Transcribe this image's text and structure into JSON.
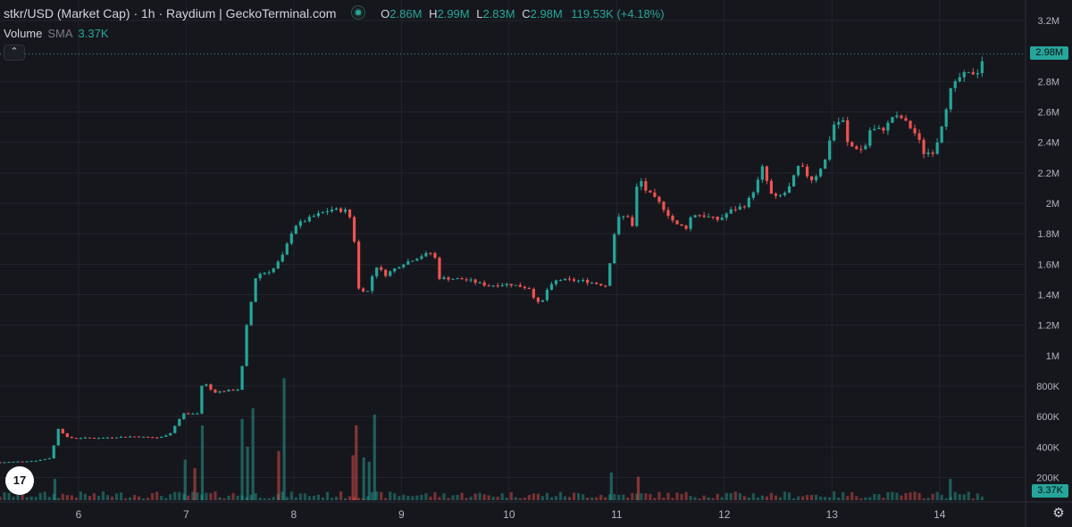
{
  "header": {
    "title": "stkr/USD (Market Cap) · 1h · Raydium | GeckoTerminal.com",
    "ohlc": [
      {
        "key": "O",
        "value": "2.86M"
      },
      {
        "key": "H",
        "value": "2.99M"
      },
      {
        "key": "L",
        "value": "2.83M"
      },
      {
        "key": "C",
        "value": "2.98M"
      }
    ],
    "change": "119.53K (+4.18%)"
  },
  "volume_legend": {
    "label": "Volume",
    "indicator": "SMA",
    "value": "3.37K"
  },
  "collapse_icon": "chevron-up-icon",
  "price_tag": "2.98M",
  "volume_tag": "3.37K",
  "logo_text": "17",
  "colors": {
    "up": "#26a69a",
    "down": "#ef5350",
    "background": "#16171d",
    "grid": "#22242e",
    "text": "#d1d4dc"
  },
  "chart_data": {
    "type": "candlestick",
    "ylim": [
      0,
      3200000
    ],
    "y_ticks": [
      {
        "value": 200000,
        "label": "200K"
      },
      {
        "value": 400000,
        "label": "400K"
      },
      {
        "value": 600000,
        "label": "600K"
      },
      {
        "value": 800000,
        "label": "800K"
      },
      {
        "value": 1000000,
        "label": "1M"
      },
      {
        "value": 1200000,
        "label": "1.2M"
      },
      {
        "value": 1400000,
        "label": "1.4M"
      },
      {
        "value": 1600000,
        "label": "1.6M"
      },
      {
        "value": 1800000,
        "label": "1.8M"
      },
      {
        "value": 2000000,
        "label": "2M"
      },
      {
        "value": 2200000,
        "label": "2.2M"
      },
      {
        "value": 2400000,
        "label": "2.4M"
      },
      {
        "value": 2600000,
        "label": "2.6M"
      },
      {
        "value": 2800000,
        "label": "2.8M"
      },
      {
        "value": 3200000,
        "label": "3.2M"
      }
    ],
    "x_ticks": [
      {
        "day": 6,
        "label": "6"
      },
      {
        "day": 7,
        "label": "7"
      },
      {
        "day": 8,
        "label": "8"
      },
      {
        "day": 9,
        "label": "9"
      },
      {
        "day": 10,
        "label": "10"
      },
      {
        "day": 11,
        "label": "11"
      },
      {
        "day": 12,
        "label": "12"
      },
      {
        "day": 13,
        "label": "13"
      },
      {
        "day": 14,
        "label": "14"
      }
    ],
    "xlim": [
      5.27,
      14.5
    ],
    "last_price": 2980000,
    "close_path": [
      [
        5.3,
        300000
      ],
      [
        5.6,
        310000
      ],
      [
        5.75,
        330000
      ],
      [
        5.8,
        530000
      ],
      [
        5.9,
        460000
      ],
      [
        6.2,
        460000
      ],
      [
        6.5,
        470000
      ],
      [
        6.75,
        460000
      ],
      [
        6.85,
        490000
      ],
      [
        6.97,
        620000
      ],
      [
        7.12,
        620000
      ],
      [
        7.15,
        840000
      ],
      [
        7.25,
        760000
      ],
      [
        7.5,
        780000
      ],
      [
        7.55,
        1150000
      ],
      [
        7.65,
        1530000
      ],
      [
        7.8,
        1560000
      ],
      [
        7.9,
        1660000
      ],
      [
        8.0,
        1850000
      ],
      [
        8.2,
        1920000
      ],
      [
        8.35,
        1960000
      ],
      [
        8.5,
        1950000
      ],
      [
        8.55,
        1850000
      ],
      [
        8.6,
        1440000
      ],
      [
        8.7,
        1420000
      ],
      [
        8.75,
        1600000
      ],
      [
        8.85,
        1530000
      ],
      [
        9.0,
        1600000
      ],
      [
        9.2,
        1660000
      ],
      [
        9.3,
        1680000
      ],
      [
        9.35,
        1510000
      ],
      [
        9.6,
        1500000
      ],
      [
        9.8,
        1460000
      ],
      [
        10.0,
        1470000
      ],
      [
        10.2,
        1440000
      ],
      [
        10.25,
        1350000
      ],
      [
        10.3,
        1340000
      ],
      [
        10.35,
        1430000
      ],
      [
        10.45,
        1500000
      ],
      [
        10.7,
        1490000
      ],
      [
        10.9,
        1460000
      ],
      [
        10.95,
        1670000
      ],
      [
        11.0,
        1900000
      ],
      [
        11.1,
        1920000
      ],
      [
        11.15,
        1840000
      ],
      [
        11.2,
        2200000
      ],
      [
        11.25,
        2100000
      ],
      [
        11.4,
        2000000
      ],
      [
        11.55,
        1860000
      ],
      [
        11.65,
        1840000
      ],
      [
        11.7,
        1930000
      ],
      [
        11.8,
        1920000
      ],
      [
        11.95,
        1890000
      ],
      [
        12.05,
        1950000
      ],
      [
        12.2,
        1990000
      ],
      [
        12.3,
        2120000
      ],
      [
        12.35,
        2240000
      ],
      [
        12.45,
        2030000
      ],
      [
        12.55,
        2060000
      ],
      [
        12.6,
        2100000
      ],
      [
        12.7,
        2260000
      ],
      [
        12.8,
        2150000
      ],
      [
        12.85,
        2180000
      ],
      [
        12.95,
        2300000
      ],
      [
        13.0,
        2510000
      ],
      [
        13.1,
        2550000
      ],
      [
        13.15,
        2380000
      ],
      [
        13.3,
        2350000
      ],
      [
        13.35,
        2480000
      ],
      [
        13.5,
        2490000
      ],
      [
        13.55,
        2570000
      ],
      [
        13.65,
        2560000
      ],
      [
        13.75,
        2480000
      ],
      [
        13.8,
        2430000
      ],
      [
        13.85,
        2330000
      ],
      [
        13.95,
        2340000
      ],
      [
        14.0,
        2460000
      ],
      [
        14.1,
        2740000
      ],
      [
        14.2,
        2840000
      ],
      [
        14.35,
        2860000
      ],
      [
        14.42,
        2980000
      ]
    ],
    "volume_spikes": [
      {
        "x": 5.78,
        "v": 1.0,
        "up": true
      },
      {
        "x": 6.99,
        "v": 1.9,
        "up": true
      },
      {
        "x": 7.08,
        "v": 1.5,
        "up": false
      },
      {
        "x": 7.15,
        "v": 3.5,
        "up": true
      },
      {
        "x": 7.52,
        "v": 3.8,
        "up": true
      },
      {
        "x": 7.57,
        "v": 2.5,
        "up": true
      },
      {
        "x": 7.62,
        "v": 4.3,
        "up": true
      },
      {
        "x": 7.86,
        "v": 2.3,
        "up": false
      },
      {
        "x": 7.91,
        "v": 5.7,
        "up": true
      },
      {
        "x": 8.55,
        "v": 2.1,
        "up": false
      },
      {
        "x": 8.58,
        "v": 3.5,
        "up": false
      },
      {
        "x": 8.65,
        "v": 2.0,
        "up": true
      },
      {
        "x": 8.75,
        "v": 4.0,
        "up": true
      },
      {
        "x": 8.7,
        "v": 1.8,
        "up": true
      },
      {
        "x": 10.95,
        "v": 1.3,
        "up": true
      },
      {
        "x": 11.2,
        "v": 1.1,
        "up": false
      },
      {
        "x": 14.1,
        "v": 1.0,
        "up": true
      }
    ]
  }
}
